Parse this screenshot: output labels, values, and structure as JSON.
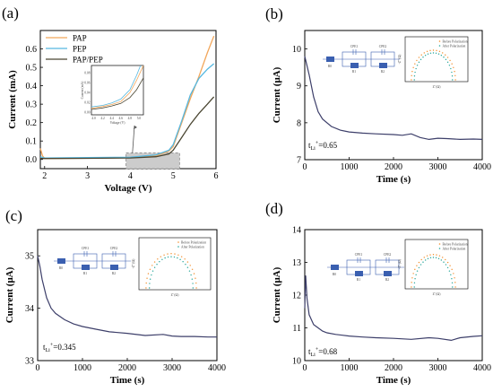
{
  "colors": {
    "PAP": "#f2a65a",
    "PEP": "#56b8e0",
    "PAP/PEP": "#4a4632",
    "ca": "#3d3f6a",
    "before": "#f28e2b",
    "after": "#26a69a",
    "circuit": "#3a5fb0",
    "inset_box": "#cccccc"
  },
  "chart_data": [
    {
      "panel": "(a)",
      "type": "line",
      "xlabel": "Voltage (V)",
      "ylabel": "Current (mA)",
      "xlim": [
        1.9,
        6.0
      ],
      "ylim": [
        -0.05,
        0.7
      ],
      "xticks": [
        "2",
        "3",
        "4",
        "5",
        "6"
      ],
      "yticks": [
        "0.0",
        "0.1",
        "0.2",
        "0.3",
        "0.4",
        "0.5",
        "0.6"
      ],
      "legend": "top-left",
      "series": [
        {
          "name": "PAP",
          "x": [
            1.9,
            1.95,
            2.0,
            3.0,
            4.0,
            4.6,
            4.9,
            5.0,
            5.2,
            5.4,
            5.6,
            5.8,
            5.95
          ],
          "y": [
            0.06,
            0.02,
            0.005,
            0.007,
            0.01,
            0.02,
            0.045,
            0.07,
            0.2,
            0.33,
            0.45,
            0.58,
            0.67
          ]
        },
        {
          "name": "PEP",
          "x": [
            1.9,
            2.0,
            3.0,
            4.0,
            4.6,
            4.9,
            5.0,
            5.2,
            5.4,
            5.6,
            5.8,
            5.95
          ],
          "y": [
            0.015,
            0.008,
            0.01,
            0.012,
            0.025,
            0.05,
            0.08,
            0.21,
            0.35,
            0.44,
            0.49,
            0.52
          ]
        },
        {
          "name": "PAP/PEP",
          "x": [
            1.9,
            2.0,
            3.0,
            4.0,
            4.6,
            4.9,
            5.0,
            5.2,
            5.4,
            5.6,
            5.8,
            5.95
          ],
          "y": [
            0.005,
            0.005,
            0.006,
            0.008,
            0.015,
            0.03,
            0.05,
            0.12,
            0.19,
            0.25,
            0.3,
            0.34
          ]
        }
      ],
      "inset": {
        "xlabel": "Voltage (V)",
        "ylabel": "Current (mA)",
        "xticks": [
          "4.0",
          "4.2",
          "4.4",
          "4.6",
          "4.8",
          "5.0"
        ],
        "yticks": [
          "0.00",
          "0.02",
          "0.04",
          "0.06",
          "0.08"
        ]
      }
    },
    {
      "panel": "(b)",
      "type": "line",
      "xlabel": "Time (s)",
      "ylabel": "Current (μA)",
      "xlim": [
        0,
        4000
      ],
      "ylim": [
        7,
        10.5
      ],
      "xticks": [
        "0",
        "1000",
        "2000",
        "3000",
        "4000"
      ],
      "yticks": [
        "7",
        "8",
        "9",
        "10"
      ],
      "annotation_base": "t",
      "annotation_sub": "Li",
      "annotation_sup": "+",
      "annotation_value": "=0.65",
      "x": [
        0,
        100,
        200,
        300,
        400,
        600,
        800,
        1000,
        1300,
        1600,
        2000,
        2200,
        2400,
        2600,
        2800,
        3000,
        3200,
        3500,
        3800,
        4000
      ],
      "y": [
        9.8,
        9.3,
        8.7,
        8.3,
        8.1,
        7.9,
        7.8,
        7.75,
        7.72,
        7.7,
        7.68,
        7.66,
        7.7,
        7.6,
        7.55,
        7.58,
        7.57,
        7.55,
        7.56,
        7.55
      ]
    },
    {
      "panel": "(c)",
      "type": "line",
      "xlabel": "Time (s)",
      "ylabel": "Current (μA)",
      "xlim": [
        0,
        4000
      ],
      "ylim": [
        33,
        35.5
      ],
      "xticks": [
        "0",
        "1000",
        "2000",
        "3000",
        "4000"
      ],
      "yticks": [
        "33",
        "34",
        "35"
      ],
      "annotation_base": "t",
      "annotation_sub": "Li",
      "annotation_sup": "+",
      "annotation_value": "=0.345",
      "x": [
        0,
        50,
        100,
        200,
        300,
        400,
        600,
        800,
        1000,
        1300,
        1600,
        2000,
        2400,
        2800,
        3000,
        3200,
        3500,
        3800,
        4000
      ],
      "y": [
        35.0,
        34.8,
        34.55,
        34.2,
        34.0,
        33.9,
        33.78,
        33.7,
        33.65,
        33.6,
        33.55,
        33.52,
        33.48,
        33.5,
        33.47,
        33.46,
        33.46,
        33.45,
        33.45
      ]
    },
    {
      "panel": "(d)",
      "type": "line",
      "xlabel": "Time (s)",
      "ylabel": "Current (μA)",
      "xlim": [
        0,
        4000
      ],
      "ylim": [
        10,
        14
      ],
      "xticks": [
        "0",
        "1000",
        "2000",
        "3000",
        "4000"
      ],
      "yticks": [
        "10",
        "11",
        "12",
        "13",
        "14"
      ],
      "annotation_base": "t",
      "annotation_sub": "Li",
      "annotation_sup": "+",
      "annotation_value": "=0.68",
      "x": [
        0,
        20,
        50,
        100,
        200,
        300,
        400,
        500,
        700,
        1000,
        1300,
        1600,
        2000,
        2400,
        2800,
        3000,
        3300,
        3500,
        3800,
        4000
      ],
      "y": [
        11.6,
        12.6,
        11.9,
        11.4,
        11.1,
        11.0,
        10.9,
        10.85,
        10.8,
        10.75,
        10.72,
        10.7,
        10.68,
        10.65,
        10.7,
        10.68,
        10.62,
        10.7,
        10.74,
        10.76
      ]
    }
  ],
  "eis_inset": {
    "legend": [
      "Before Polarization",
      "After Polarization"
    ],
    "xlabel": "Z' (Ω)",
    "ylabel": "-Z'' (Ω)"
  },
  "circuit": {
    "labels": [
      "R0",
      "R1",
      "CPE1",
      "R2",
      "CPE2"
    ]
  }
}
